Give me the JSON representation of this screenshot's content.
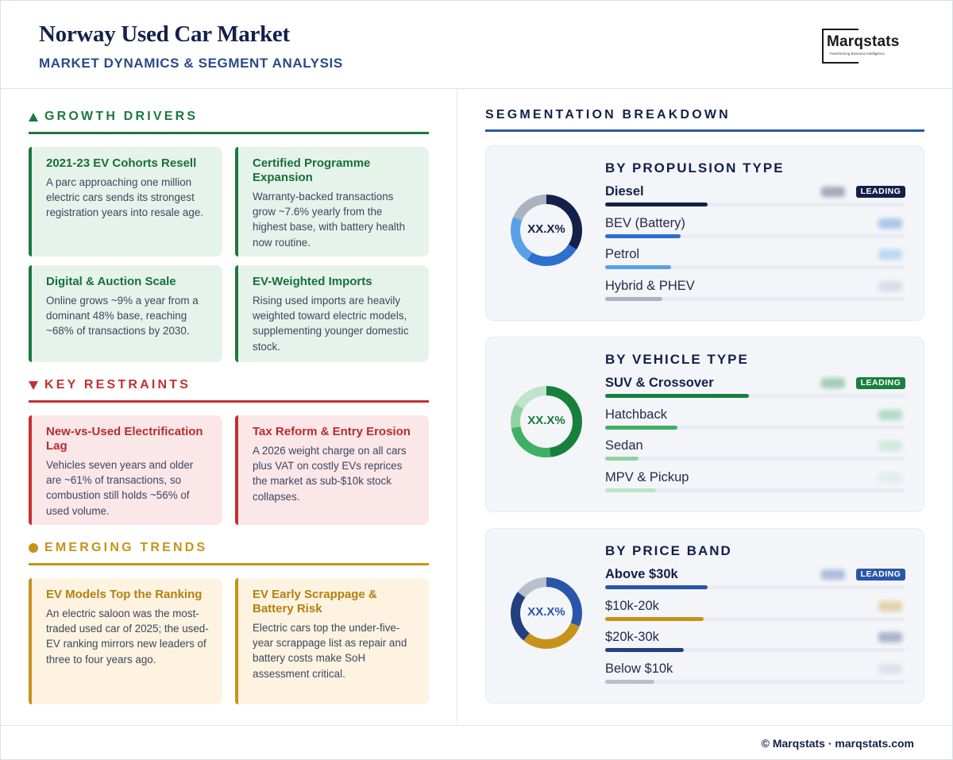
{
  "header": {
    "title": "Norway Used Car Market",
    "subtitle": "MARKET DYNAMICS & SEGMENT ANALYSIS",
    "logo_name": "Marqstats",
    "logo_tagline": "Transforming Business Intelligence"
  },
  "colors": {
    "navy": "#13204a",
    "blue": "#2a56a8",
    "green": "#1a7a3c",
    "red": "#c53030",
    "gold": "#c7921a"
  },
  "growth": {
    "heading": "GROWTH DRIVERS",
    "icon": "triangle-up-icon",
    "cards": [
      {
        "title": "2021-23 EV Cohorts Resell",
        "body": "A parc approaching one million electric cars sends its strongest registration years into resale age."
      },
      {
        "title": "Certified Programme Expansion",
        "body": "Warranty-backed transactions grow ~7.6% yearly from the highest base, with battery health now routine."
      },
      {
        "title": "Digital & Auction Scale",
        "body": "Online grows ~9% a year from a dominant 48% base, reaching ~68% of transactions by 2030."
      },
      {
        "title": "EV-Weighted Imports",
        "body": "Rising used imports are heavily weighted toward electric models, supplementing younger domestic stock."
      }
    ]
  },
  "restraints": {
    "heading": "KEY RESTRAINTS",
    "icon": "triangle-down-icon",
    "cards": [
      {
        "title": "New-vs-Used Electrification Lag",
        "body": "Vehicles seven years and older are ~61% of transactions, so combustion still holds ~56% of used volume."
      },
      {
        "title": "Tax Reform & Entry Erosion",
        "body": "A 2026 weight charge on all cars plus VAT on costly EVs reprices the market as sub-$10k stock collapses."
      }
    ]
  },
  "trends": {
    "heading": "EMERGING TRENDS",
    "icon": "circle-dot-icon",
    "cards": [
      {
        "title": "EV Models Top the Ranking",
        "body": "An electric saloon was the most-traded used car of 2025; the used-EV ranking mirrors new leaders of three to four years ago."
      },
      {
        "title": "EV Early Scrappage & Battery Risk",
        "body": "Electric cars top the under-five-year scrappage list as repair and battery costs make SoH assessment critical."
      }
    ]
  },
  "segmentation": {
    "heading": "SEGMENTATION BREAKDOWN",
    "leading_badge": "LEADING",
    "panels": [
      {
        "title": "BY PROPULSION TYPE",
        "donut_label": "XX.X%",
        "label_color": "#13204a",
        "rows": [
          {
            "label": "Diesel",
            "share": 0.34,
            "color": "#13204a",
            "leading": true
          },
          {
            "label": "BEV (Battery)",
            "share": 0.25,
            "color": "#2e6fcf",
            "leading": false
          },
          {
            "label": "Petrol",
            "share": 0.22,
            "color": "#5aa0e6",
            "leading": false
          },
          {
            "label": "Hybrid & PHEV",
            "share": 0.19,
            "color": "#a9b3c2",
            "leading": false
          }
        ]
      },
      {
        "title": "BY VEHICLE TYPE",
        "donut_label": "XX.X%",
        "label_color": "#1a7a3c",
        "rows": [
          {
            "label": "SUV & Crossover",
            "share": 0.48,
            "color": "#17803d",
            "leading": true
          },
          {
            "label": "Hatchback",
            "share": 0.24,
            "color": "#3fb063",
            "leading": false
          },
          {
            "label": "Sedan",
            "share": 0.11,
            "color": "#8fd3a4",
            "leading": false
          },
          {
            "label": "MPV & Pickup",
            "share": 0.17,
            "color": "#bfe3cb",
            "leading": false
          }
        ]
      },
      {
        "title": "BY PRICE BAND",
        "donut_label": "XX.X%",
        "label_color": "#2a56a8",
        "rows": [
          {
            "label": "Above $30k",
            "share": 0.31,
            "color": "#2a56a8",
            "leading": true
          },
          {
            "label": "$10k-20k",
            "share": 0.3,
            "color": "#c7921a",
            "leading": false
          },
          {
            "label": "$20k-30k",
            "share": 0.24,
            "color": "#23407e",
            "leading": false
          },
          {
            "label": "Below $10k",
            "share": 0.15,
            "color": "#b7c0cc",
            "leading": false
          }
        ]
      }
    ]
  },
  "footer": {
    "text": "© Marqstats · marqstats.com"
  }
}
